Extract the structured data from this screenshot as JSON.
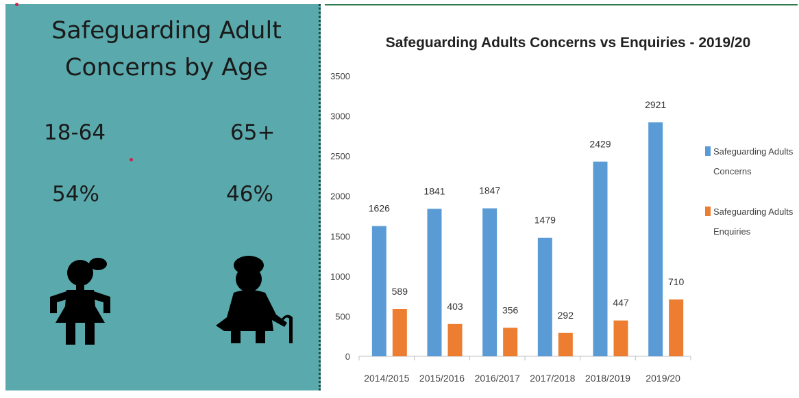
{
  "infographic": {
    "title_line1": "Safeguarding Adult",
    "title_line2": "Concerns by Age",
    "groups": [
      {
        "label": "18-64",
        "percent": "54%",
        "icon": "young-girl-icon"
      },
      {
        "label": "65+",
        "percent": "46%",
        "icon": "elderly-woman-with-cane-icon"
      }
    ]
  },
  "chart_data": {
    "type": "bar",
    "title": "Safeguarding Adults Concerns vs Enquiries - 2019/20",
    "categories": [
      "2014/2015",
      "2015/2016",
      "2016/2017",
      "2017/2018",
      "2018/2019",
      "2019/20"
    ],
    "series": [
      {
        "name": "Safeguarding Adults Concerns",
        "values": [
          1626,
          1841,
          1847,
          1479,
          2429,
          2921
        ],
        "color": "#5b9bd5"
      },
      {
        "name": "Safeguarding Adults Enquiries",
        "values": [
          589,
          403,
          356,
          292,
          447,
          710
        ],
        "color": "#ed7d31"
      }
    ],
    "ylim": [
      0,
      3500
    ],
    "yticks": [
      0,
      500,
      1000,
      1500,
      2000,
      2500,
      3000,
      3500
    ],
    "grid": false,
    "legend": "right"
  }
}
